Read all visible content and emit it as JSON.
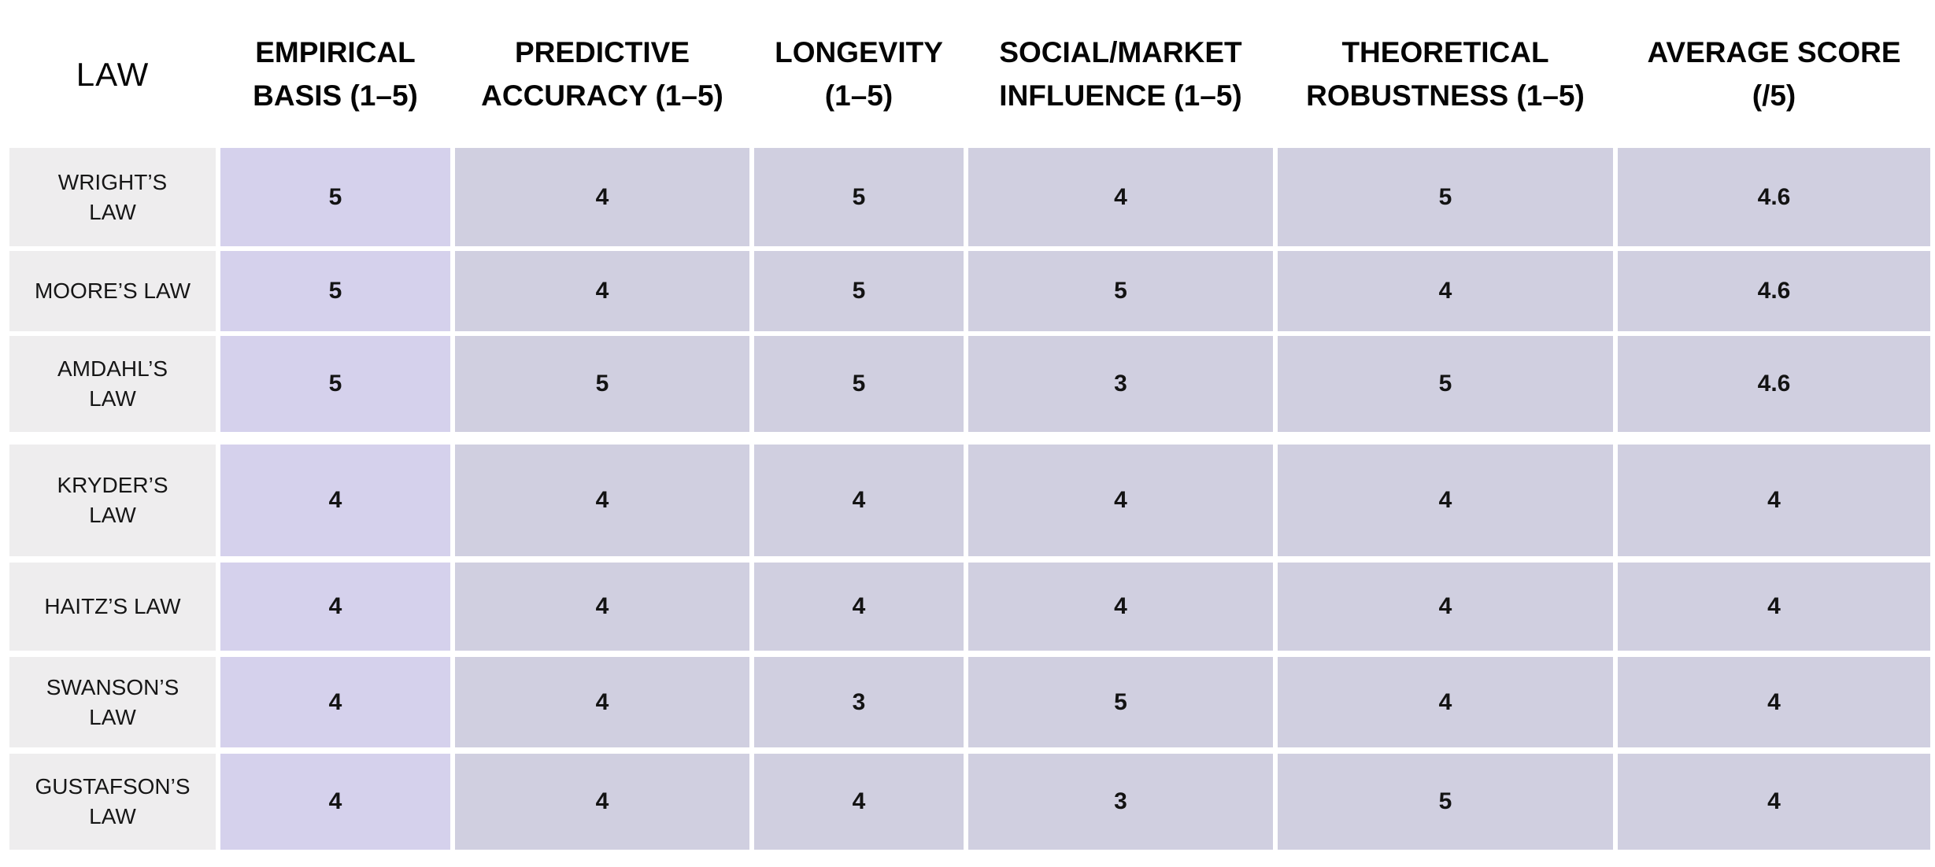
{
  "colors": {
    "page_bg": "#ffffff",
    "label_cell_bg": "#eeedee",
    "accent_column_bg": "#d5d1ec",
    "score_cell_bg": "#d0cfe0",
    "text": "#141414"
  },
  "table": {
    "header": {
      "law": {
        "line1": "LAW",
        "line2": ""
      },
      "cols": [
        {
          "line1": "EMPIRICAL",
          "line2": "BASIS (1–5)"
        },
        {
          "line1": "PREDICTIVE",
          "line2": "ACCURACY (1–5)"
        },
        {
          "line1": "LONGEVITY",
          "line2": "(1–5)"
        },
        {
          "line1": "SOCIAL/MARKET",
          "line2": "INFLUENCE (1–5)"
        },
        {
          "line1": "THEORETICAL",
          "line2": "ROBUSTNESS (1–5)"
        },
        {
          "line1": "AVERAGE SCORE",
          "line2": "(/5)"
        }
      ]
    },
    "rows": [
      {
        "label_line1": "WRIGHT’S",
        "label_line2": "LAW",
        "scores": [
          5,
          4,
          5,
          4,
          5,
          4.6
        ]
      },
      {
        "label_line1": "MOORE’S LAW",
        "label_line2": "",
        "scores": [
          5,
          4,
          5,
          5,
          4,
          4.6
        ]
      },
      {
        "label_line1": "AMDAHL’S",
        "label_line2": "LAW",
        "scores": [
          5,
          5,
          5,
          3,
          5,
          4.6
        ]
      },
      {
        "label_line1": "KRYDER’S",
        "label_line2": "LAW",
        "scores": [
          4,
          4,
          4,
          4,
          4,
          4
        ]
      },
      {
        "label_line1": "HAITZ’S LAW",
        "label_line2": "",
        "scores": [
          4,
          4,
          4,
          4,
          4,
          4
        ]
      },
      {
        "label_line1": "SWANSON’S",
        "label_line2": "LAW",
        "scores": [
          4,
          4,
          3,
          5,
          4,
          4
        ]
      },
      {
        "label_line1": "GUSTAFSON’S",
        "label_line2": "LAW",
        "scores": [
          4,
          4,
          4,
          3,
          5,
          4
        ]
      }
    ]
  },
  "chart_data": {
    "type": "table",
    "title": "",
    "columns": [
      "LAW",
      "EMPIRICAL BASIS (1–5)",
      "PREDICTIVE ACCURACY (1–5)",
      "LONGEVITY (1–5)",
      "SOCIAL/MARKET INFLUENCE (1–5)",
      "THEORETICAL ROBUSTNESS (1–5)",
      "AVERAGE SCORE (/5)"
    ],
    "rows": [
      [
        "WRIGHT’S LAW",
        5,
        4,
        5,
        4,
        5,
        4.6
      ],
      [
        "MOORE’S LAW",
        5,
        4,
        5,
        5,
        4,
        4.6
      ],
      [
        "AMDAHL’S LAW",
        5,
        5,
        5,
        3,
        5,
        4.6
      ],
      [
        "KRYDER’S LAW",
        4,
        4,
        4,
        4,
        4,
        4
      ],
      [
        "HAITZ’S LAW",
        4,
        4,
        4,
        4,
        4,
        4
      ],
      [
        "SWANSON’S LAW",
        4,
        4,
        3,
        5,
        4,
        4
      ],
      [
        "GUSTAFSON’S LAW",
        4,
        4,
        4,
        3,
        5,
        4
      ]
    ]
  }
}
